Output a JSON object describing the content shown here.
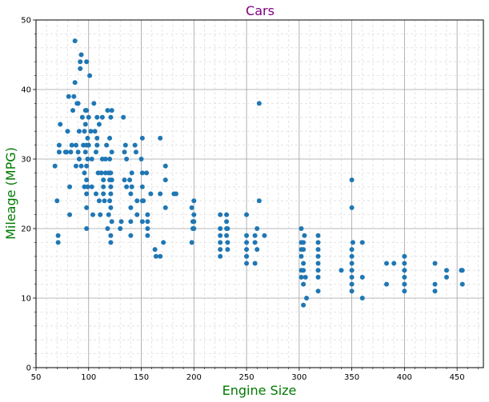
{
  "chart_data": {
    "type": "scatter",
    "title": "Cars",
    "xlabel": "Engine Size",
    "ylabel": "Mileage (MPG)",
    "xlim": [
      50,
      475
    ],
    "ylim": [
      0,
      50
    ],
    "xticks": [
      50,
      100,
      150,
      200,
      250,
      300,
      350,
      400,
      450
    ],
    "yticks": [
      0,
      10,
      20,
      30,
      40,
      50
    ],
    "grid": "major solid, minor dashed",
    "colors": {
      "marker": "#1f77b4",
      "title": "#800080",
      "axis_label": "#007a00",
      "major_grid": "#a0a0a0",
      "minor_grid": "#dedede"
    },
    "points": [
      [
        68,
        29
      ],
      [
        70,
        24
      ],
      [
        71,
        19
      ],
      [
        71,
        18
      ],
      [
        72,
        31
      ],
      [
        72,
        32
      ],
      [
        73,
        35
      ],
      [
        78,
        31
      ],
      [
        79,
        31
      ],
      [
        80,
        34
      ],
      [
        81,
        39
      ],
      [
        82,
        26
      ],
      [
        82,
        22
      ],
      [
        83,
        31
      ],
      [
        84,
        32
      ],
      [
        85,
        37
      ],
      [
        86,
        39
      ],
      [
        87,
        47
      ],
      [
        87,
        41
      ],
      [
        88,
        32
      ],
      [
        88,
        29
      ],
      [
        89,
        38
      ],
      [
        90,
        38
      ],
      [
        90,
        31
      ],
      [
        91,
        30
      ],
      [
        91,
        34
      ],
      [
        92,
        44
      ],
      [
        92,
        43
      ],
      [
        93,
        45
      ],
      [
        93,
        29
      ],
      [
        94,
        36
      ],
      [
        95,
        32
      ],
      [
        96,
        34
      ],
      [
        96,
        28
      ],
      [
        96,
        26
      ],
      [
        97,
        31
      ],
      [
        97,
        37
      ],
      [
        97,
        35
      ],
      [
        98,
        44
      ],
      [
        98,
        37
      ],
      [
        98,
        32
      ],
      [
        98,
        29
      ],
      [
        98,
        27
      ],
      [
        98,
        25
      ],
      [
        98,
        23
      ],
      [
        98,
        20
      ],
      [
        99,
        33
      ],
      [
        99,
        30
      ],
      [
        99,
        26
      ],
      [
        100,
        32
      ],
      [
        100,
        36
      ],
      [
        101,
        42
      ],
      [
        102,
        34
      ],
      [
        103,
        30
      ],
      [
        103,
        26
      ],
      [
        104,
        22
      ],
      [
        105,
        38
      ],
      [
        106,
        34
      ],
      [
        107,
        31
      ],
      [
        107,
        25
      ],
      [
        108,
        33
      ],
      [
        108,
        36
      ],
      [
        108,
        32
      ],
      [
        109,
        28
      ],
      [
        110,
        35
      ],
      [
        110,
        24
      ],
      [
        111,
        22
      ],
      [
        112,
        28
      ],
      [
        113,
        36
      ],
      [
        113,
        30
      ],
      [
        114,
        27
      ],
      [
        114,
        26
      ],
      [
        114,
        25
      ],
      [
        115,
        24
      ],
      [
        116,
        30
      ],
      [
        116,
        28
      ],
      [
        117,
        32
      ],
      [
        118,
        37
      ],
      [
        118,
        20
      ],
      [
        119,
        28
      ],
      [
        119,
        22
      ],
      [
        120,
        24
      ],
      [
        120,
        30
      ],
      [
        120,
        27
      ],
      [
        120,
        33
      ],
      [
        121,
        36
      ],
      [
        121,
        28
      ],
      [
        121,
        26
      ],
      [
        121,
        25
      ],
      [
        121,
        23
      ],
      [
        121,
        19
      ],
      [
        121,
        18
      ],
      [
        122,
        37
      ],
      [
        122,
        31
      ],
      [
        122,
        27
      ],
      [
        122,
        21
      ],
      [
        130,
        20
      ],
      [
        131,
        21
      ],
      [
        133,
        36
      ],
      [
        134,
        31
      ],
      [
        134,
        27
      ],
      [
        135,
        32
      ],
      [
        136,
        30
      ],
      [
        136,
        26
      ],
      [
        139,
        27
      ],
      [
        140,
        25
      ],
      [
        140,
        23
      ],
      [
        140,
        21
      ],
      [
        140,
        19
      ],
      [
        141,
        28
      ],
      [
        141,
        26
      ],
      [
        144,
        32
      ],
      [
        145,
        31
      ],
      [
        146,
        24
      ],
      [
        146,
        22
      ],
      [
        150,
        30
      ],
      [
        151,
        33
      ],
      [
        151,
        28
      ],
      [
        151,
        26
      ],
      [
        151,
        24
      ],
      [
        151,
        21
      ],
      [
        152,
        24
      ],
      [
        155,
        28
      ],
      [
        156,
        22
      ],
      [
        156,
        21
      ],
      [
        156,
        20
      ],
      [
        156,
        19
      ],
      [
        159,
        25
      ],
      [
        163,
        17
      ],
      [
        164,
        16
      ],
      [
        168,
        33
      ],
      [
        168,
        25
      ],
      [
        168,
        16
      ],
      [
        171,
        18
      ],
      [
        173,
        29
      ],
      [
        173,
        27
      ],
      [
        173,
        23
      ],
      [
        181,
        25
      ],
      [
        183,
        25
      ],
      [
        198,
        18
      ],
      [
        198,
        23
      ],
      [
        199,
        21
      ],
      [
        199,
        20
      ],
      [
        200,
        24
      ],
      [
        200,
        22
      ],
      [
        200,
        21
      ],
      [
        200,
        20
      ],
      [
        225,
        22
      ],
      [
        225,
        20
      ],
      [
        225,
        19
      ],
      [
        225,
        18
      ],
      [
        225,
        16
      ],
      [
        225,
        17
      ],
      [
        231,
        22
      ],
      [
        231,
        21
      ],
      [
        231,
        20
      ],
      [
        231,
        19
      ],
      [
        232,
        20
      ],
      [
        232,
        18
      ],
      [
        232,
        17
      ],
      [
        250,
        22
      ],
      [
        250,
        19
      ],
      [
        250,
        18
      ],
      [
        250,
        17
      ],
      [
        250,
        16
      ],
      [
        250,
        15
      ],
      [
        258,
        18
      ],
      [
        258,
        19
      ],
      [
        258,
        15
      ],
      [
        260,
        20
      ],
      [
        260,
        17
      ],
      [
        262,
        24
      ],
      [
        262,
        38
      ],
      [
        267,
        19
      ],
      [
        302,
        20
      ],
      [
        302,
        18
      ],
      [
        302,
        17
      ],
      [
        302,
        16
      ],
      [
        302,
        14
      ],
      [
        302,
        13
      ],
      [
        304,
        18
      ],
      [
        304,
        17
      ],
      [
        304,
        15
      ],
      [
        304,
        14
      ],
      [
        304,
        12
      ],
      [
        304,
        9
      ],
      [
        305,
        19
      ],
      [
        306,
        13
      ],
      [
        307,
        10
      ],
      [
        318,
        19
      ],
      [
        318,
        18
      ],
      [
        318,
        17
      ],
      [
        318,
        16
      ],
      [
        318,
        15
      ],
      [
        318,
        14
      ],
      [
        318,
        13
      ],
      [
        318,
        11
      ],
      [
        340,
        14
      ],
      [
        350,
        27
      ],
      [
        350,
        23
      ],
      [
        350,
        17
      ],
      [
        350,
        16
      ],
      [
        350,
        15
      ],
      [
        350,
        14
      ],
      [
        350,
        13
      ],
      [
        350,
        12
      ],
      [
        350,
        11
      ],
      [
        351,
        18
      ],
      [
        360,
        18
      ],
      [
        360,
        13
      ],
      [
        360,
        10
      ],
      [
        383,
        15
      ],
      [
        383,
        12
      ],
      [
        390,
        15
      ],
      [
        400,
        16
      ],
      [
        400,
        15
      ],
      [
        400,
        14
      ],
      [
        400,
        13
      ],
      [
        400,
        12
      ],
      [
        400,
        11
      ],
      [
        429,
        15
      ],
      [
        429,
        12
      ],
      [
        429,
        11
      ],
      [
        440,
        14
      ],
      [
        440,
        13
      ],
      [
        454,
        14
      ],
      [
        455,
        14
      ],
      [
        455,
        12
      ]
    ]
  }
}
